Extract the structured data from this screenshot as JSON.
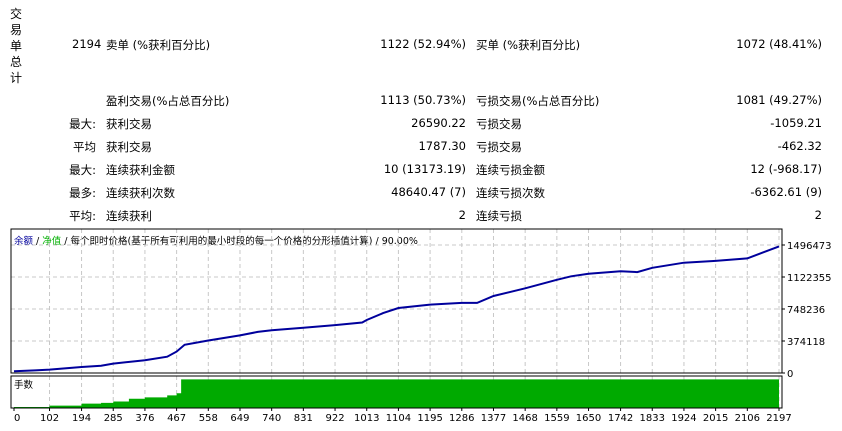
{
  "report": {
    "section_title_chars": [
      "交",
      "易",
      "单",
      "总",
      "计"
    ],
    "total_trades": "2194",
    "sell_label": "卖单 (%获利百分比)",
    "sell_value": "1122 (52.94%)",
    "buy_label": "买单 (%获利百分比)",
    "buy_value": "1072 (48.41%)",
    "profit_trades_label": "盈利交易(%占总百分比)",
    "profit_trades_value": "1113 (50.73%)",
    "loss_trades_label": "亏损交易(%占总百分比)",
    "loss_trades_value": "1081 (49.27%)",
    "rows": [
      {
        "prefix": "最大:",
        "left_label": "获利交易",
        "left_value": "26590.22",
        "right_label": "亏损交易",
        "right_value": "-1059.21"
      },
      {
        "prefix": "平均",
        "left_label": "获利交易",
        "left_value": "1787.30",
        "right_label": "亏损交易",
        "right_value": "-462.32"
      },
      {
        "prefix": "最大:",
        "left_label": "连续获利金额",
        "left_value": "10 (13173.19)",
        "right_label": "连续亏损金额",
        "right_value": "12 (-968.17)"
      },
      {
        "prefix": "最多:",
        "left_label": "连续获利次数",
        "left_value": "48640.47 (7)",
        "right_label": "连续亏损次数",
        "right_value": "-6362.61 (9)"
      },
      {
        "prefix": "平均:",
        "left_label": "连续获利",
        "left_value": "2",
        "right_label": "连续亏损",
        "right_value": "2"
      }
    ]
  },
  "chart_header": {
    "balance_label": "余额",
    "sep1": " / ",
    "equity_label": "净值",
    "sep2": " / ",
    "model_label": "每个即时价格(基于所有可利用的最小时段的每一个价格的分形插值计算)",
    "sep3": " / ",
    "quality": "90.00%"
  },
  "colors": {
    "balance_line": "#00009c",
    "equity_label": "#00b000",
    "volume_fill": "#00aa00",
    "grid": "#c8c8c8",
    "frame": "#000000"
  },
  "volume_panel_label": "手数",
  "chart_data": [
    {
      "type": "line",
      "title": "余额 / 净值 / 每个即时价格(基于所有可利用的最小时段的每一个价格的分形插值计算) / 90.00%",
      "xlabel": "",
      "ylabel": "",
      "x_ticks": [
        "0",
        "102",
        "194",
        "285",
        "376",
        "467",
        "558",
        "649",
        "740",
        "831",
        "922",
        "1013",
        "1104",
        "1195",
        "1286",
        "1377",
        "1468",
        "1559",
        "1650",
        "1742",
        "1833",
        "1924",
        "2015",
        "2106",
        "2197"
      ],
      "y_ticks": [
        "0",
        "374118",
        "748236",
        "1122355",
        "1496473"
      ],
      "ylim": [
        0,
        1496473
      ],
      "xlim": [
        0,
        2197
      ],
      "grid": true,
      "series": [
        {
          "name": "余额",
          "x": [
            0,
            60,
            102,
            194,
            250,
            285,
            376,
            440,
            467,
            490,
            558,
            649,
            700,
            740,
            831,
            922,
            1000,
            1013,
            1060,
            1104,
            1195,
            1286,
            1330,
            1377,
            1468,
            1559,
            1600,
            1650,
            1742,
            1790,
            1833,
            1924,
            2015,
            2106,
            2197
          ],
          "values": [
            20000,
            30000,
            40000,
            70000,
            85000,
            110000,
            150000,
            190000,
            250000,
            330000,
            380000,
            440000,
            480000,
            500000,
            530000,
            560000,
            590000,
            620000,
            700000,
            760000,
            800000,
            820000,
            820000,
            900000,
            990000,
            1090000,
            1130000,
            1160000,
            1190000,
            1180000,
            1230000,
            1290000,
            1310000,
            1340000,
            1480000
          ]
        }
      ]
    },
    {
      "type": "area",
      "title": "手数",
      "x": [
        0,
        102,
        194,
        250,
        285,
        330,
        376,
        440,
        467,
        480,
        2197
      ],
      "values": [
        0,
        0.05,
        0.12,
        0.15,
        0.2,
        0.3,
        0.35,
        0.42,
        0.5,
        1.0,
        1.0
      ],
      "ylim": [
        0,
        1.05
      ],
      "grid": true
    }
  ]
}
